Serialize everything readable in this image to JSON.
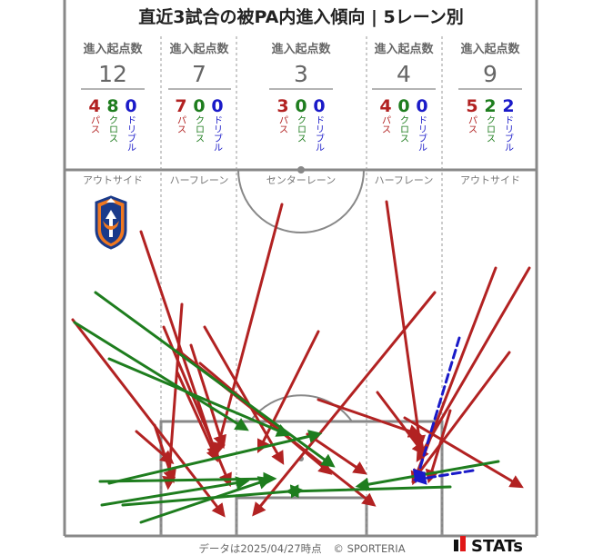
{
  "title": "直近3試合の被PA内進入傾向 | 5レーン別",
  "lane_header_label": "進入起点数",
  "type_labels": {
    "pass": "パス",
    "cross": "クロス",
    "dribble": "ドリブル"
  },
  "lanes": [
    {
      "name": "アウトサイド",
      "total": "12",
      "pass": "4",
      "cross": "8",
      "dribble": "0"
    },
    {
      "name": "ハーフレーン",
      "total": "7",
      "pass": "7",
      "cross": "0",
      "dribble": "0"
    },
    {
      "name": "センターレーン",
      "total": "3",
      "pass": "3",
      "cross": "0",
      "dribble": "0"
    },
    {
      "name": "ハーフレーン",
      "total": "4",
      "pass": "4",
      "cross": "0",
      "dribble": "0"
    },
    {
      "name": "アウトサイド",
      "total": "9",
      "pass": "5",
      "cross": "2",
      "dribble": "2"
    }
  ],
  "colors": {
    "pass": "#b22222",
    "cross": "#1e7d1e",
    "dribble": "#1a1ac8",
    "lines": "#888888"
  },
  "logo_icon": "albirex-crest-icon",
  "footer": {
    "date_note": "データは2025/04/27時点",
    "copyright": "© SPORTERIA",
    "brand": "STATs"
  },
  "arrows": [
    {
      "type": "pass",
      "from": [
        155,
        255
      ],
      "to": [
        238,
        502
      ]
    },
    {
      "type": "pass",
      "from": [
        80,
        352
      ],
      "to": [
        245,
        566
      ]
    },
    {
      "type": "pass",
      "from": [
        200,
        335
      ],
      "to": [
        185,
        535
      ]
    },
    {
      "type": "pass",
      "from": [
        180,
        360
      ],
      "to": [
        252,
        532
      ]
    },
    {
      "type": "pass",
      "from": [
        150,
        475
      ],
      "to": [
        188,
        508
      ]
    },
    {
      "type": "pass",
      "from": [
        170,
        468
      ],
      "to": [
        190,
        528
      ]
    },
    {
      "type": "pass",
      "from": [
        225,
        360
      ],
      "to": [
        310,
        508
      ]
    },
    {
      "type": "pass",
      "from": [
        210,
        380
      ],
      "to": [
        245,
        490
      ]
    },
    {
      "type": "pass",
      "from": [
        195,
        410
      ],
      "to": [
        238,
        505
      ]
    },
    {
      "type": "pass",
      "from": [
        220,
        400
      ],
      "to": [
        362,
        520
      ]
    },
    {
      "type": "pass",
      "from": [
        195,
        385
      ],
      "to": [
        410,
        555
      ]
    },
    {
      "type": "pass",
      "from": [
        310,
        225
      ],
      "to": [
        238,
        498
      ]
    },
    {
      "type": "pass",
      "from": [
        350,
        365
      ],
      "to": [
        285,
        495
      ]
    },
    {
      "type": "pass",
      "from": [
        338,
        478
      ],
      "to": [
        400,
        520
      ]
    },
    {
      "type": "pass",
      "from": [
        350,
        440
      ],
      "to": [
        460,
        478
      ]
    },
    {
      "type": "pass",
      "from": [
        425,
        222
      ],
      "to": [
        462,
        490
      ]
    },
    {
      "type": "pass",
      "from": [
        478,
        322
      ],
      "to": [
        280,
        565
      ]
    },
    {
      "type": "pass",
      "from": [
        415,
        432
      ],
      "to": [
        465,
        498
      ]
    },
    {
      "type": "pass",
      "from": [
        582,
        295
      ],
      "to": [
        460,
        505
      ]
    },
    {
      "type": "pass",
      "from": [
        545,
        295
      ],
      "to": [
        455,
        530
      ]
    },
    {
      "type": "pass",
      "from": [
        560,
        388
      ],
      "to": [
        455,
        528
      ]
    },
    {
      "type": "pass",
      "from": [
        495,
        452
      ],
      "to": [
        472,
        528
      ]
    },
    {
      "type": "pass",
      "from": [
        445,
        460
      ],
      "to": [
        572,
        535
      ]
    },
    {
      "type": "cross",
      "from": [
        105,
        322
      ],
      "to": [
        365,
        512
      ]
    },
    {
      "type": "cross",
      "from": [
        82,
        355
      ],
      "to": [
        270,
        472
      ]
    },
    {
      "type": "cross",
      "from": [
        120,
        395
      ],
      "to": [
        315,
        478
      ]
    },
    {
      "type": "cross",
      "from": [
        110,
        530
      ],
      "to": [
        300,
        527
      ]
    },
    {
      "type": "cross",
      "from": [
        120,
        532
      ],
      "to": [
        350,
        478
      ]
    },
    {
      "type": "cross",
      "from": [
        112,
        556
      ],
      "to": [
        270,
        530
      ]
    },
    {
      "type": "cross",
      "from": [
        135,
        556
      ],
      "to": [
        330,
        540
      ]
    },
    {
      "type": "cross",
      "from": [
        155,
        575
      ],
      "to": [
        295,
        528
      ]
    },
    {
      "type": "cross",
      "from": [
        548,
        508
      ],
      "to": [
        395,
        535
      ]
    },
    {
      "type": "cross",
      "from": [
        495,
        536
      ],
      "to": [
        318,
        541
      ]
    },
    {
      "type": "dribble",
      "from": [
        505,
        372
      ],
      "to": [
        458,
        528
      ]
    },
    {
      "type": "dribble",
      "from": [
        520,
        518
      ],
      "to": [
        458,
        528
      ]
    }
  ]
}
